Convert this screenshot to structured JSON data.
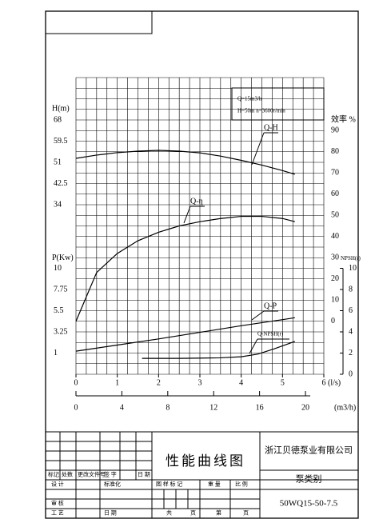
{
  "chart_data": {
    "type": "line",
    "info": [
      "Q=15m3/h",
      "H=50m  n=3600r/min"
    ],
    "xlabel": "(l/s)",
    "xlim": [
      0,
      6
    ],
    "xticks": [
      0,
      1,
      2,
      3,
      4,
      5,
      6
    ],
    "x2label": "(m3/h)",
    "x2lim": [
      0,
      21.6
    ],
    "x2ticks": [
      0,
      4,
      8,
      12,
      16,
      20
    ],
    "ylabel": "H(m)",
    "ylim": [
      -34,
      85
    ],
    "yticks": [
      68,
      59.5,
      51,
      42.5,
      34
    ],
    "y2label": "效率 %",
    "y2lim": [
      -25,
      115
    ],
    "y2ticks": [
      0,
      10,
      20,
      30,
      40,
      50,
      60,
      70,
      80,
      90
    ],
    "y3label": "P(Kw)",
    "y3lim": [
      -1.25,
      30.25
    ],
    "y3ticks": [
      1,
      3.25,
      5.5,
      7.75,
      10
    ],
    "y4label": "NPSH(r)",
    "y4lim": [
      0,
      28
    ],
    "y4ticks": [
      0,
      2,
      4,
      6,
      8,
      10
    ],
    "series": [
      {
        "name": "Q-H",
        "axis": "y",
        "color": "#000000",
        "x": [
          0,
          0.5,
          1,
          1.5,
          2,
          2.5,
          3,
          3.5,
          4,
          4.5,
          5,
          5.3
        ],
        "values": [
          52.6,
          53.9,
          54.9,
          55.5,
          55.8,
          55.5,
          54.8,
          53.5,
          51.8,
          49.9,
          47.7,
          46.2
        ]
      },
      {
        "name": "Q-η",
        "axis": "y2",
        "color": "#000000",
        "x": [
          0,
          0.5,
          1,
          1.5,
          2,
          2.5,
          3,
          3.5,
          4,
          4.5,
          5,
          5.3
        ],
        "values": [
          0,
          23,
          32,
          38,
          42,
          45,
          47,
          48.5,
          49.5,
          49.5,
          48.5,
          47
        ]
      },
      {
        "name": "Q-P",
        "axis": "y3",
        "color": "#000000",
        "x": [
          0,
          1,
          2,
          3,
          4,
          5,
          5.3
        ],
        "values": [
          1.2,
          1.85,
          2.5,
          3.2,
          3.9,
          4.55,
          4.75
        ]
      },
      {
        "name": "Q-NPSH(r)",
        "axis": "y4",
        "color": "#000000",
        "x": [
          1.6,
          2.5,
          3.5,
          4,
          4.4,
          4.8,
          5.3
        ],
        "values": [
          1.5,
          1.5,
          1.55,
          1.65,
          1.9,
          2.4,
          3.1
        ]
      }
    ]
  },
  "title_block": {
    "title": "性能曲线图",
    "company": "浙江贝德泵业有限公司",
    "category": "泵类别",
    "model": "50WQ15-50-7.5",
    "rev_headers": [
      "标记",
      "处数",
      "更改文件号",
      "签 字",
      "日 期"
    ],
    "roles": [
      "设 计",
      "标准化",
      "审 核",
      "工 艺",
      "日 期"
    ],
    "drawing_mark": "图 样 标 记",
    "weight": "重 量",
    "scale": "比 例",
    "footer": [
      "共",
      "页",
      "第",
      "页"
    ]
  }
}
